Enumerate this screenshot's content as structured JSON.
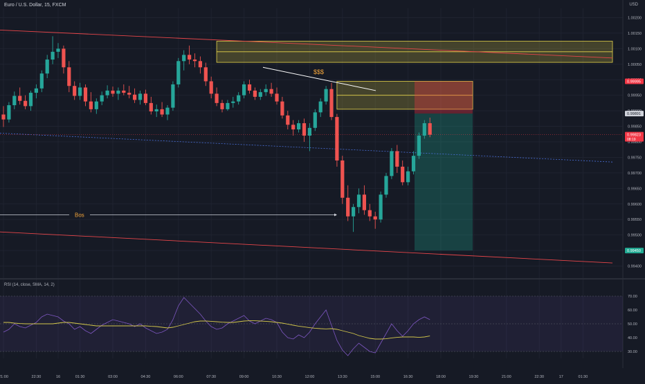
{
  "header": {
    "symbol": "Euro / U.S. Dollar, 15, FXCM",
    "unit": "USD"
  },
  "rsi_header": "RSI (14, close, SMA, 14, 2)",
  "annotations": {
    "liquidity": "$$$",
    "bos": "Bos"
  },
  "colors": {
    "bull": "#26a69a",
    "bear": "#ef5350",
    "zone": "#e6d44a",
    "trend": "#e8464a",
    "rsi": "#7e57c2",
    "rsi_ma": "#d4c84a"
  },
  "chart_data": [
    {
      "type": "candlestick",
      "title": "Euro / U.S. Dollar, 15, FXCM",
      "ylim": [
        0.9937,
        1.0023
      ],
      "y_ticks": [
        "1.00200",
        "1.00150",
        "1.00100",
        "1.00050",
        "1.00000",
        "0.99950",
        "0.99900",
        "0.99850",
        "0.99800",
        "0.99750",
        "0.99700",
        "0.99650",
        "0.99600",
        "0.99550",
        "0.99500",
        "0.99450",
        "0.99400"
      ],
      "x_ticks": [
        {
          "label": "21:00",
          "i": 0
        },
        {
          "label": "22:30",
          "i": 6
        },
        {
          "label": "16",
          "i": 10
        },
        {
          "label": "01:30",
          "i": 14
        },
        {
          "label": "03:00",
          "i": 20
        },
        {
          "label": "04:30",
          "i": 26
        },
        {
          "label": "06:00",
          "i": 32
        },
        {
          "label": "07:30",
          "i": 38
        },
        {
          "label": "09:00",
          "i": 44
        },
        {
          "label": "10:30",
          "i": 50
        },
        {
          "label": "12:00",
          "i": 56
        },
        {
          "label": "13:30",
          "i": 62
        },
        {
          "label": "15:00",
          "i": 68
        },
        {
          "label": "16:30",
          "i": 74
        },
        {
          "label": "18:00",
          "i": 80
        },
        {
          "label": "19:30",
          "i": 86
        },
        {
          "label": "21:00",
          "i": 92
        },
        {
          "label": "22:30",
          "i": 98
        },
        {
          "label": "17",
          "i": 102
        },
        {
          "label": "01:30",
          "i": 106
        }
      ],
      "candles": [
        [
          0.99888,
          0.99915,
          0.99848,
          0.99872
        ],
        [
          0.99872,
          0.99928,
          0.99862,
          0.99918
        ],
        [
          0.99918,
          0.99962,
          0.99905,
          0.99948
        ],
        [
          0.99948,
          0.99975,
          0.9992,
          0.99932
        ],
        [
          0.99932,
          0.9995,
          0.99905,
          0.99915
        ],
        [
          0.99915,
          0.99965,
          0.999,
          0.99958
        ],
        [
          0.99958,
          0.99985,
          0.9994,
          0.99972
        ],
        [
          0.99972,
          1.0003,
          0.9996,
          1.0002
        ],
        [
          1.0002,
          1.0008,
          1.00005,
          1.00065
        ],
        [
          1.00065,
          1.0014,
          1.0005,
          1.0009
        ],
        [
          1.0009,
          1.00118,
          1.0007,
          1.001
        ],
        [
          1.001,
          1.0011,
          1.0002,
          1.0004
        ],
        [
          1.0004,
          1.0006,
          0.9996,
          0.9998
        ],
        [
          0.9998,
          0.99995,
          0.99935,
          0.99948
        ],
        [
          0.99948,
          0.9999,
          0.99935,
          0.99975
        ],
        [
          0.99975,
          0.99985,
          0.99915,
          0.9993
        ],
        [
          0.9993,
          0.9996,
          0.99895,
          0.99905
        ],
        [
          0.99905,
          0.9994,
          0.9989,
          0.9993
        ],
        [
          0.9993,
          0.99962,
          0.99918,
          0.9995
        ],
        [
          0.9995,
          0.99982,
          0.9994,
          0.99965
        ],
        [
          0.99965,
          0.99978,
          0.99945,
          0.99955
        ],
        [
          0.99955,
          0.99975,
          0.99935,
          0.99965
        ],
        [
          0.99965,
          0.99985,
          0.9995,
          0.99958
        ],
        [
          0.99958,
          0.9998,
          0.9994,
          0.99952
        ],
        [
          0.99952,
          0.99972,
          0.99925,
          0.99935
        ],
        [
          0.99935,
          0.99965,
          0.9992,
          0.99955
        ],
        [
          0.99955,
          0.99968,
          0.99918,
          0.99925
        ],
        [
          0.99925,
          0.99945,
          0.99888,
          0.99898
        ],
        [
          0.99898,
          0.9992,
          0.9988,
          0.99905
        ],
        [
          0.99905,
          0.99928,
          0.9988,
          0.99888
        ],
        [
          0.99888,
          0.99918,
          0.9987,
          0.9991
        ],
        [
          0.9991,
          0.99995,
          0.999,
          0.99985
        ],
        [
          0.99985,
          1.0007,
          0.99975,
          1.0006
        ],
        [
          1.0006,
          1.00095,
          1.0003,
          1.0008
        ],
        [
          1.0008,
          1.0011,
          1.0005,
          1.00065
        ],
        [
          1.00065,
          1.00085,
          1.0004,
          1.0006
        ],
        [
          1.0006,
          1.00075,
          1.0002,
          1.0004
        ],
        [
          1.0004,
          1.00055,
          0.9998,
          0.99995
        ],
        [
          0.99995,
          1.0001,
          0.9994,
          0.99955
        ],
        [
          0.99955,
          0.99975,
          0.99915,
          0.99925
        ],
        [
          0.99925,
          0.99935,
          0.99895,
          0.99905
        ],
        [
          0.99905,
          0.99935,
          0.999,
          0.99925
        ],
        [
          0.99925,
          0.99945,
          0.9991,
          0.9993
        ],
        [
          0.9993,
          0.9996,
          0.9992,
          0.9995
        ],
        [
          0.9995,
          0.99995,
          0.9994,
          0.99985
        ],
        [
          0.99985,
          1.0,
          0.99955,
          0.99965
        ],
        [
          0.99965,
          0.99975,
          0.99935,
          0.99945
        ],
        [
          0.99945,
          0.9997,
          0.99935,
          0.9996
        ],
        [
          0.9996,
          0.99985,
          0.99948,
          0.9997
        ],
        [
          0.9997,
          0.9999,
          0.99945,
          0.99955
        ],
        [
          0.99955,
          0.99975,
          0.9992,
          0.9993
        ],
        [
          0.9993,
          0.99945,
          0.99875,
          0.99885
        ],
        [
          0.99885,
          0.999,
          0.9984,
          0.99855
        ],
        [
          0.99855,
          0.9987,
          0.9982,
          0.9984
        ],
        [
          0.9984,
          0.9987,
          0.9983,
          0.9986
        ],
        [
          0.9986,
          0.99875,
          0.998,
          0.9982
        ],
        [
          0.9982,
          0.9986,
          0.9977,
          0.99845
        ],
        [
          0.99845,
          0.99905,
          0.99835,
          0.99895
        ],
        [
          0.99895,
          0.9994,
          0.9988,
          0.9993
        ],
        [
          0.9993,
          0.9998,
          0.9992,
          0.9997
        ],
        [
          0.9997,
          0.9999,
          0.9987,
          0.9988
        ],
        [
          0.9988,
          0.9989,
          0.9972,
          0.9974
        ],
        [
          0.9974,
          0.99755,
          0.996,
          0.9962
        ],
        [
          0.9962,
          0.9966,
          0.99545,
          0.9956
        ],
        [
          0.9956,
          0.996,
          0.9951,
          0.9959
        ],
        [
          0.9959,
          0.9965,
          0.9957,
          0.9963
        ],
        [
          0.9963,
          0.9966,
          0.99565,
          0.9958
        ],
        [
          0.9958,
          0.996,
          0.99545,
          0.9956
        ],
        [
          0.9956,
          0.99575,
          0.9952,
          0.9955
        ],
        [
          0.9955,
          0.9964,
          0.9954,
          0.9963
        ],
        [
          0.9963,
          0.997,
          0.9962,
          0.9969
        ],
        [
          0.9969,
          0.9978,
          0.9968,
          0.9977
        ],
        [
          0.9977,
          0.9979,
          0.997,
          0.9972
        ],
        [
          0.9972,
          0.9974,
          0.9966,
          0.9967
        ],
        [
          0.9967,
          0.9972,
          0.9966,
          0.99705
        ],
        [
          0.99705,
          0.9977,
          0.99695,
          0.99755
        ],
        [
          0.99755,
          0.9983,
          0.99745,
          0.9982
        ],
        [
          0.9982,
          0.9987,
          0.9981,
          0.9986
        ],
        [
          0.9986,
          0.99878,
          0.99815,
          0.99823
        ]
      ]
    },
    {
      "type": "line",
      "title": "RSI (14, close, SMA, 14, 2)",
      "ylim": [
        25,
        75
      ],
      "y_ticks": [
        "70.00",
        "60.00",
        "50.00",
        "40.00",
        "30.00"
      ],
      "series": [
        {
          "name": "RSI",
          "values": [
            44,
            46,
            50,
            48,
            47,
            49,
            51,
            55,
            57,
            56,
            55,
            52,
            50,
            46,
            48,
            45,
            43,
            46,
            49,
            51,
            53,
            52,
            51,
            50,
            48,
            50,
            47,
            45,
            43,
            44,
            46,
            53,
            63,
            69,
            65,
            61,
            57,
            52,
            48,
            46,
            47,
            50,
            52,
            54,
            56,
            52,
            50,
            52,
            54,
            53,
            51,
            44,
            40,
            39,
            42,
            40,
            44,
            50,
            55,
            60,
            49,
            38,
            31,
            27,
            32,
            36,
            33,
            30,
            29,
            36,
            43,
            50,
            45,
            41,
            45,
            50,
            53,
            55,
            53
          ]
        },
        {
          "name": "RSI-based MA",
          "values": [
            51,
            51,
            50.5,
            50.2,
            50,
            50,
            50,
            50,
            50,
            50,
            50.5,
            51,
            51,
            50.5,
            50,
            49.5,
            49,
            48.5,
            48.5,
            48.5,
            48.5,
            48.5,
            48.5,
            48.5,
            48.5,
            48.5,
            48.5,
            48.2,
            48,
            47.5,
            47,
            47.5,
            48.5,
            49.5,
            50.5,
            51.5,
            52,
            52,
            51.8,
            51.5,
            51.2,
            51,
            51,
            51.5,
            52,
            52.2,
            52.2,
            52,
            51.8,
            51.5,
            51,
            50.5,
            49.8,
            49,
            48.3,
            47.8,
            47.2,
            46.8,
            46.5,
            46.3,
            46.5,
            46,
            45,
            44,
            43,
            41.5,
            40.5,
            39.5,
            39,
            39,
            39.2,
            39.8,
            40.2,
            40.5,
            40.5,
            40.5,
            40.2,
            40.5,
            41.2
          ]
        }
      ],
      "levels": [
        70,
        50,
        30
      ]
    }
  ],
  "price_tags": [
    {
      "label": "0.99995",
      "value": 0.99995,
      "bg": "#f23645",
      "fg": "#ffffff"
    },
    {
      "label": "0.99891",
      "value": 0.99891,
      "bg": "#d1d4dc",
      "fg": "#131722"
    },
    {
      "label": "0.99823",
      "value": 0.99823,
      "bg": "#f23645",
      "fg": "#ffffff",
      "sub": "08:19"
    },
    {
      "label": "0.99450",
      "value": 0.9945,
      "bg": "#22ab94",
      "fg": "#ffffff"
    }
  ]
}
